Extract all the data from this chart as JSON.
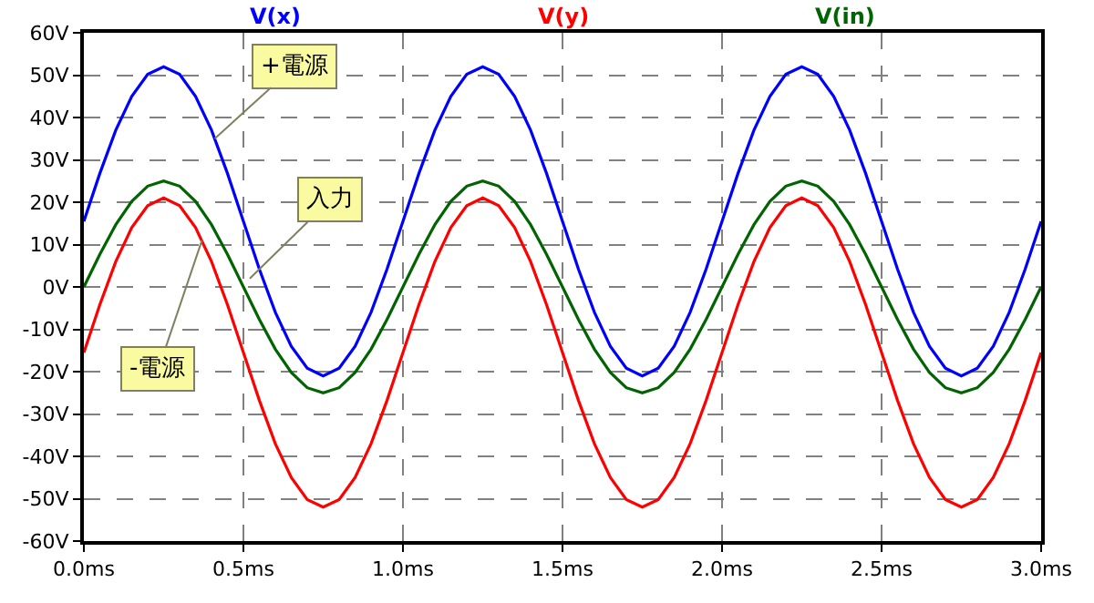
{
  "chart_data": {
    "type": "line",
    "x": [
      0,
      0.05,
      0.1,
      0.15,
      0.2,
      0.25,
      0.3,
      0.35,
      0.4,
      0.45,
      0.5,
      0.55,
      0.6,
      0.65,
      0.7,
      0.75,
      0.8,
      0.85,
      0.9,
      0.95,
      1.0,
      1.05,
      1.1,
      1.15,
      1.2,
      1.25,
      1.3,
      1.35,
      1.4,
      1.45,
      1.5,
      1.55,
      1.6,
      1.65,
      1.7,
      1.75,
      1.8,
      1.85,
      1.9,
      1.95,
      2.0,
      2.05,
      2.1,
      2.15,
      2.2,
      2.25,
      2.3,
      2.35,
      2.4,
      2.45,
      2.5,
      2.55,
      2.6,
      2.65,
      2.7,
      2.75,
      2.8,
      2.85,
      2.9,
      2.95,
      3.0
    ],
    "series": [
      {
        "name": "V(x)",
        "color": "#0000ff",
        "values": [
          15.5,
          26.8,
          37.0,
          45.0,
          50.2,
          52,
          50.2,
          45.0,
          37.0,
          26.8,
          15.5,
          4.2,
          -6.0,
          -14.0,
          -19.2,
          -21,
          -19.2,
          -14.0,
          -6.0,
          4.2,
          15.5,
          26.8,
          37.0,
          45.0,
          50.2,
          52,
          50.2,
          45.0,
          37.0,
          26.8,
          15.5,
          4.2,
          -6.0,
          -14.0,
          -19.2,
          -21,
          -19.2,
          -14.0,
          -6.0,
          4.2,
          15.5,
          26.8,
          37.0,
          45.0,
          50.2,
          52,
          50.2,
          45.0,
          37.0,
          26.8,
          15.5,
          4.2,
          -6.0,
          -14.0,
          -19.2,
          -21,
          -19.2,
          -14.0,
          -6.0,
          4.2,
          15.5
        ]
      },
      {
        "name": "V(y)",
        "color": "#ff0000",
        "values": [
          -15.5,
          -4.2,
          6.0,
          14.0,
          19.2,
          21,
          19.2,
          14.0,
          6.0,
          -4.2,
          -15.5,
          -26.8,
          -37.0,
          -45.0,
          -50.2,
          -52,
          -50.2,
          -45.0,
          -37.0,
          -26.8,
          -15.5,
          -4.2,
          6.0,
          14.0,
          19.2,
          21,
          19.2,
          14.0,
          6.0,
          -4.2,
          -15.5,
          -26.8,
          -37.0,
          -45.0,
          -50.2,
          -52,
          -50.2,
          -45.0,
          -37.0,
          -26.8,
          -15.5,
          -4.2,
          6.0,
          14.0,
          19.2,
          21,
          19.2,
          14.0,
          6.0,
          -4.2,
          -15.5,
          -26.8,
          -37.0,
          -45.0,
          -50.2,
          -52,
          -50.2,
          -45.0,
          -37.0,
          -26.8,
          -15.5
        ]
      },
      {
        "name": "V(in)",
        "color": "#006400",
        "values": [
          0,
          7.7,
          14.7,
          20.2,
          23.8,
          25,
          23.8,
          20.2,
          14.7,
          7.7,
          0,
          -7.7,
          -14.7,
          -20.2,
          -23.8,
          -25,
          -23.8,
          -20.2,
          -14.7,
          -7.7,
          0,
          7.7,
          14.7,
          20.2,
          23.8,
          25,
          23.8,
          20.2,
          14.7,
          7.7,
          0,
          -7.7,
          -14.7,
          -20.2,
          -23.8,
          -25,
          -23.8,
          -20.2,
          -14.7,
          -7.7,
          0,
          7.7,
          14.7,
          20.2,
          23.8,
          25,
          23.8,
          20.2,
          14.7,
          7.7,
          0,
          -7.7,
          -14.7,
          -20.2,
          -23.8,
          -25,
          -23.8,
          -20.2,
          -14.7,
          -7.7,
          0
        ]
      }
    ],
    "xlim": [
      0,
      3
    ],
    "xticks": [
      {
        "value": 0,
        "label": "0.0ms"
      },
      {
        "value": 0.5,
        "label": "0.5ms"
      },
      {
        "value": 1,
        "label": "1.0ms"
      },
      {
        "value": 1.5,
        "label": "1.5ms"
      },
      {
        "value": 2,
        "label": "2.0ms"
      },
      {
        "value": 2.5,
        "label": "2.5ms"
      },
      {
        "value": 3,
        "label": "3.0ms"
      }
    ],
    "ylim": [
      -60,
      60
    ],
    "yticks": [
      {
        "value": -60,
        "label": "-60V"
      },
      {
        "value": -50,
        "label": "-50V"
      },
      {
        "value": -40,
        "label": "-40V"
      },
      {
        "value": -30,
        "label": "-30V"
      },
      {
        "value": -20,
        "label": "-20V"
      },
      {
        "value": -10,
        "label": "-10V"
      },
      {
        "value": 0,
        "label": "0V"
      },
      {
        "value": 10,
        "label": "10V"
      },
      {
        "value": 20,
        "label": "20V"
      },
      {
        "value": 30,
        "label": "30V"
      },
      {
        "value": 40,
        "label": "40V"
      },
      {
        "value": 50,
        "label": "50V"
      },
      {
        "value": 60,
        "label": "60V"
      }
    ],
    "annotations": [
      {
        "text": "+電源",
        "x": 0.41,
        "y": 35
      },
      {
        "text": "入力",
        "x": 0.52,
        "y": 2
      },
      {
        "text": "-電源",
        "x": 0.37,
        "y": 11
      }
    ],
    "grid": true,
    "legend": "top",
    "marker": "none",
    "line_style": "solid"
  }
}
